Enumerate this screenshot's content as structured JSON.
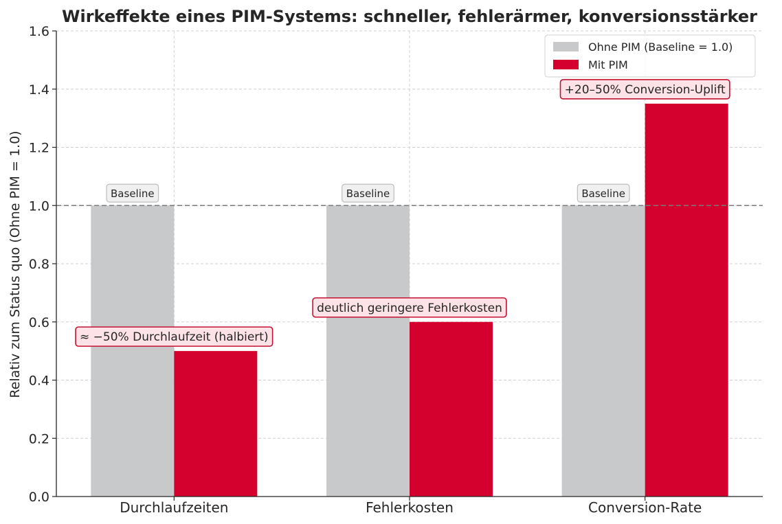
{
  "chart_data": {
    "type": "bar",
    "title": "Wirkeffekte eines PIM-Systems: schneller, fehlerärmer, konversionsstärker",
    "ylabel": "Relativ zum Status quo (Ohne PIM = 1.0)",
    "xlabel": "",
    "ylim": [
      0,
      1.6
    ],
    "yticks": [
      0.0,
      0.2,
      0.4,
      0.6,
      0.8,
      1.0,
      1.2,
      1.4,
      1.6
    ],
    "ytick_labels": [
      "0.0",
      "0.2",
      "0.4",
      "0.6",
      "0.8",
      "1.0",
      "1.2",
      "1.4",
      "1.6"
    ],
    "categories": [
      "Durchlaufzeiten",
      "Fehlerkosten",
      "Conversion-Rate"
    ],
    "series": [
      {
        "name": "Ohne PIM (Baseline = 1.0)",
        "values": [
          1.0,
          1.0,
          1.0
        ],
        "color": "#c8c9cb"
      },
      {
        "name": "Mit PIM",
        "values": [
          0.5,
          0.6,
          1.35
        ],
        "color": "#d4002d"
      }
    ],
    "reference_line": {
      "y": 1.0,
      "style": "dashed",
      "color": "#7a7a7a"
    },
    "grid": true,
    "legend_position": "top-right",
    "annotations": [
      {
        "category": 0,
        "series": 0,
        "text": "Baseline",
        "style": "gray"
      },
      {
        "category": 1,
        "series": 0,
        "text": "Baseline",
        "style": "gray"
      },
      {
        "category": 2,
        "series": 0,
        "text": "Baseline",
        "style": "gray"
      },
      {
        "category": 0,
        "series": 1,
        "text": "≈ −50% Durchlaufzeit (halbiert)",
        "style": "red"
      },
      {
        "category": 1,
        "series": 1,
        "text": "deutlich geringere Fehlerkosten",
        "style": "red"
      },
      {
        "category": 2,
        "series": 1,
        "text": "+20–50% Conversion-Uplift",
        "style": "red"
      }
    ]
  }
}
